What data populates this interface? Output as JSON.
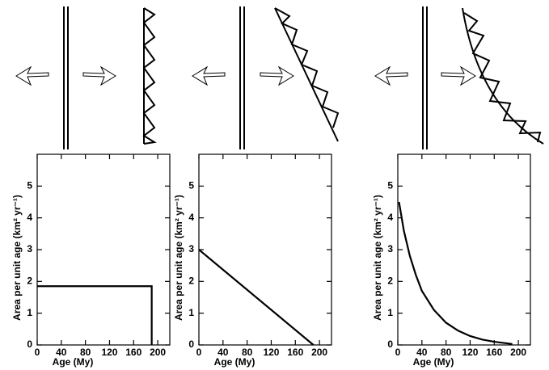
{
  "chart_data": [
    {
      "type": "line",
      "x": [
        0,
        190,
        190
      ],
      "values": [
        1.85,
        1.85,
        0
      ],
      "color": "#000000",
      "x_label": "Age (My)",
      "y_label": "Area per unit age (km² yr⁻¹)",
      "xlim": [
        0,
        220
      ],
      "ylim": [
        0,
        6
      ],
      "xticks": [
        0,
        40,
        80,
        120,
        160,
        200
      ],
      "yticks": [
        0,
        1,
        2,
        3,
        4,
        5
      ]
    },
    {
      "type": "line",
      "x": [
        0,
        190
      ],
      "values": [
        3,
        0
      ],
      "color": "#000000",
      "x_label": "Age (My)",
      "y_label": "Area per unit age (km² yr⁻¹)",
      "xlim": [
        0,
        220
      ],
      "ylim": [
        0,
        6
      ],
      "xticks": [
        0,
        40,
        80,
        120,
        160,
        200
      ],
      "yticks": [
        0,
        1,
        2,
        3,
        4,
        5
      ]
    },
    {
      "type": "line",
      "x": [
        2,
        10,
        20,
        30,
        40,
        60,
        80,
        100,
        120,
        140,
        160,
        190
      ],
      "values": [
        4.5,
        3.6,
        2.8,
        2.2,
        1.7,
        1.1,
        0.7,
        0.45,
        0.28,
        0.17,
        0.1,
        0.03
      ],
      "color": "#000000",
      "x_label": "Age (My)",
      "y_label": "Area per unit age (km² yr⁻¹)",
      "xlim": [
        0,
        220
      ],
      "ylim": [
        0,
        6
      ],
      "xticks": [
        0,
        40,
        80,
        120,
        160,
        200
      ],
      "yticks": [
        0,
        1,
        2,
        3,
        4,
        5
      ]
    }
  ]
}
